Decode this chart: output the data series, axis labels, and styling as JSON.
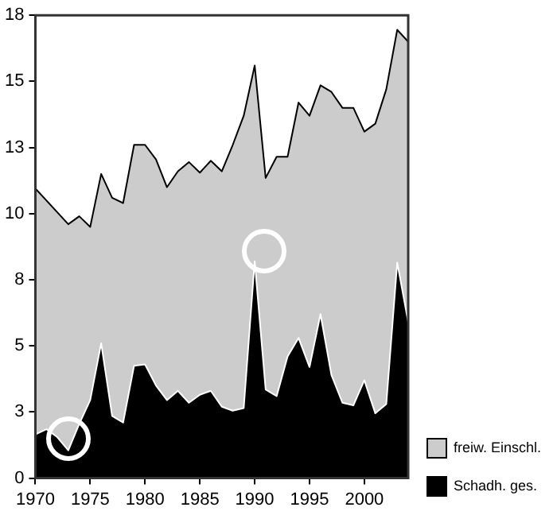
{
  "chart_data": {
    "type": "area",
    "x": [
      1970,
      1971,
      1972,
      1973,
      1974,
      1975,
      1976,
      1977,
      1978,
      1979,
      1980,
      1981,
      1982,
      1983,
      1984,
      1985,
      1986,
      1987,
      1988,
      1989,
      1990,
      1991,
      1992,
      1993,
      1994,
      1995,
      1996,
      1997,
      1998,
      1999,
      2000,
      2001,
      2002,
      2003,
      2004
    ],
    "series": [
      {
        "name": "freiw. Einschl.",
        "color": "#cccccc",
        "values": [
          10.95,
          10.5,
          10.05,
          9.6,
          9.9,
          9.5,
          11.5,
          10.6,
          10.4,
          12.6,
          12.6,
          12.05,
          11.0,
          11.6,
          11.95,
          11.55,
          12.0,
          11.6,
          12.6,
          13.7,
          15.6,
          11.35,
          12.15,
          12.15,
          14.2,
          13.7,
          14.85,
          14.6,
          14.0,
          14.0,
          13.1,
          13.4,
          14.7,
          16.95,
          16.5
        ]
      },
      {
        "name": "Schadh. ges.",
        "color": "#000000",
        "values": [
          1.65,
          1.85,
          1.55,
          1.05,
          2.05,
          2.95,
          5.1,
          2.35,
          2.1,
          4.25,
          4.3,
          3.5,
          2.95,
          3.3,
          2.85,
          3.15,
          3.3,
          2.7,
          2.55,
          2.65,
          8.2,
          3.35,
          3.1,
          4.6,
          5.3,
          4.2,
          6.2,
          3.9,
          2.85,
          2.75,
          3.7,
          2.45,
          2.8,
          8.15,
          5.9
        ]
      }
    ],
    "xlim": [
      1970,
      2004
    ],
    "xticks": [
      1970,
      1975,
      1980,
      1985,
      1990,
      1995,
      2000
    ],
    "ylim": [
      0,
      17.5
    ],
    "yticks": [
      0,
      {
        "value": 2.5,
        "label": "3"
      },
      5,
      {
        "value": 7.5,
        "label": "8"
      },
      10,
      {
        "value": 12.5,
        "label": "13"
      },
      15,
      {
        "value": 17.5,
        "label": "18"
      }
    ],
    "legend": "bottom right"
  }
}
